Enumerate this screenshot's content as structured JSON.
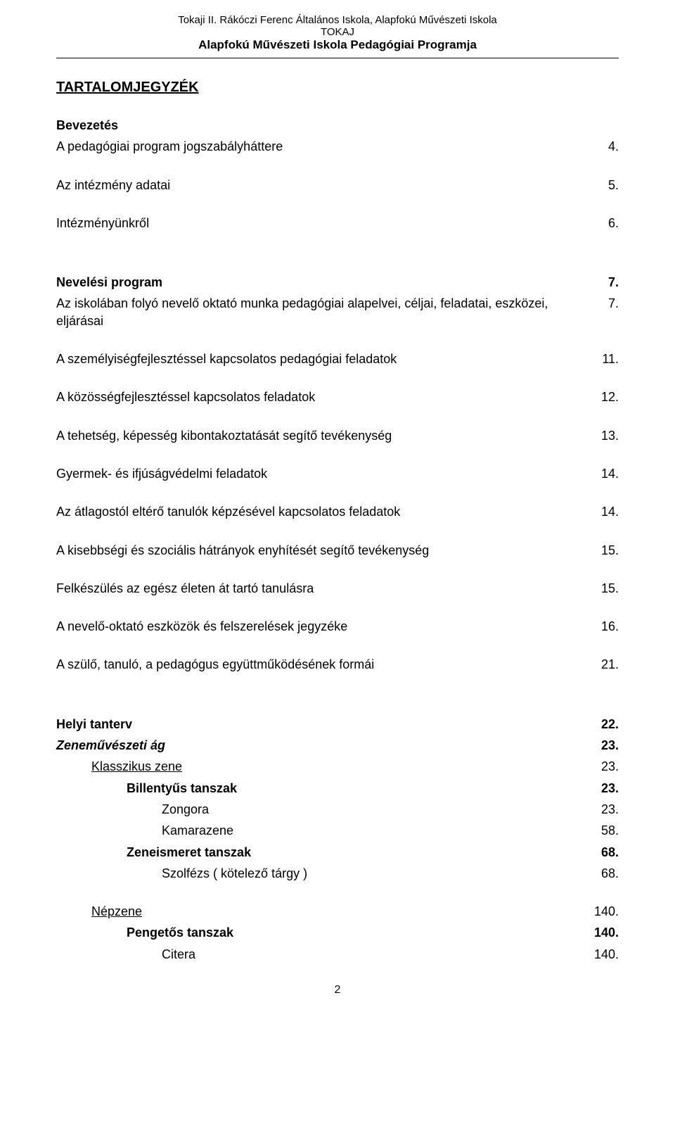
{
  "header": {
    "line1": "Tokaji II. Rákóczi Ferenc Általános Iskola, Alapfokú Művészeti Iskola",
    "line2": "TOKAJ",
    "line3": "Alapfokú Művészeti Iskola Pedagógiai Programja"
  },
  "title": "TARTALOMJEGYZÉK",
  "entries": [
    {
      "label": "Bevezetés",
      "page": "",
      "bold": true,
      "spaced": false
    },
    {
      "label": "A pedagógiai program jogszabályháttere",
      "page": "4.",
      "spaced": true
    },
    {
      "label": "Az intézmény adatai",
      "page": "5.",
      "spaced": true
    },
    {
      "label": "Intézményünkről",
      "page": "6.",
      "spaced": true,
      "extra_gap": true
    },
    {
      "label": "Nevelési program",
      "page": "7.",
      "bold": true
    },
    {
      "label": "Az iskolában folyó nevelő oktató munka pedagógiai alapelvei, céljai, feladatai, eszközei, eljárásai",
      "page": "7.",
      "spaced": true
    },
    {
      "label": "A személyiségfejlesztéssel kapcsolatos pedagógiai feladatok",
      "page": "11.",
      "spaced": true
    },
    {
      "label": "A közösségfejlesztéssel kapcsolatos feladatok",
      "page": "12.",
      "spaced": true
    },
    {
      "label": "A tehetség, képesség kibontakoztatását segítő tevékenység",
      "page": "13.",
      "spaced": true
    },
    {
      "label": "Gyermek- és ifjúságvédelmi feladatok",
      "page": "14.",
      "spaced": true
    },
    {
      "label": "Az átlagostól eltérő tanulók képzésével kapcsolatos feladatok",
      "page": "14.",
      "spaced": true
    },
    {
      "label": "A kisebbségi és szociális hátrányok enyhítését segítő tevékenység",
      "page": "15.",
      "spaced": true
    },
    {
      "label": "Felkészülés az egész életen át tartó tanulásra",
      "page": "15.",
      "spaced": true
    },
    {
      "label": "A nevelő-oktató eszközök és felszerelések jegyzéke",
      "page": "16.",
      "spaced": true
    },
    {
      "label": "A szülő, tanuló, a pedagógus együttműködésének formái",
      "page": "21.",
      "spaced": true,
      "extra_gap": true
    },
    {
      "label": "Helyi tanterv",
      "page": "22.",
      "bold": true
    },
    {
      "label": "Zeneművészeti ág",
      "page": "23.",
      "bold": true,
      "italic": true
    },
    {
      "label": "Klasszikus zene",
      "page": "23.",
      "underline": true,
      "indent": 1
    },
    {
      "label": "Billentyűs tanszak",
      "page": "23.",
      "bold": true,
      "indent": 2
    },
    {
      "label": "Zongora",
      "page": "23.",
      "indent": 3
    },
    {
      "label": "Kamarazene",
      "page": "58.",
      "indent": 3
    },
    {
      "label": "Zeneismeret tanszak",
      "page": "68.",
      "bold": true,
      "indent": 2
    },
    {
      "label": "Szolfézs ( kötelező tárgy )",
      "page": "68.",
      "indent": 3,
      "spaced": true
    },
    {
      "label": "Népzene",
      "page": "140.",
      "underline": true,
      "indent": 1
    },
    {
      "label": "Pengetős tanszak",
      "page": "140.",
      "bold": true,
      "indent": 2
    },
    {
      "label": "Citera",
      "page": "140.",
      "indent": 3
    }
  ],
  "page_number": "2"
}
